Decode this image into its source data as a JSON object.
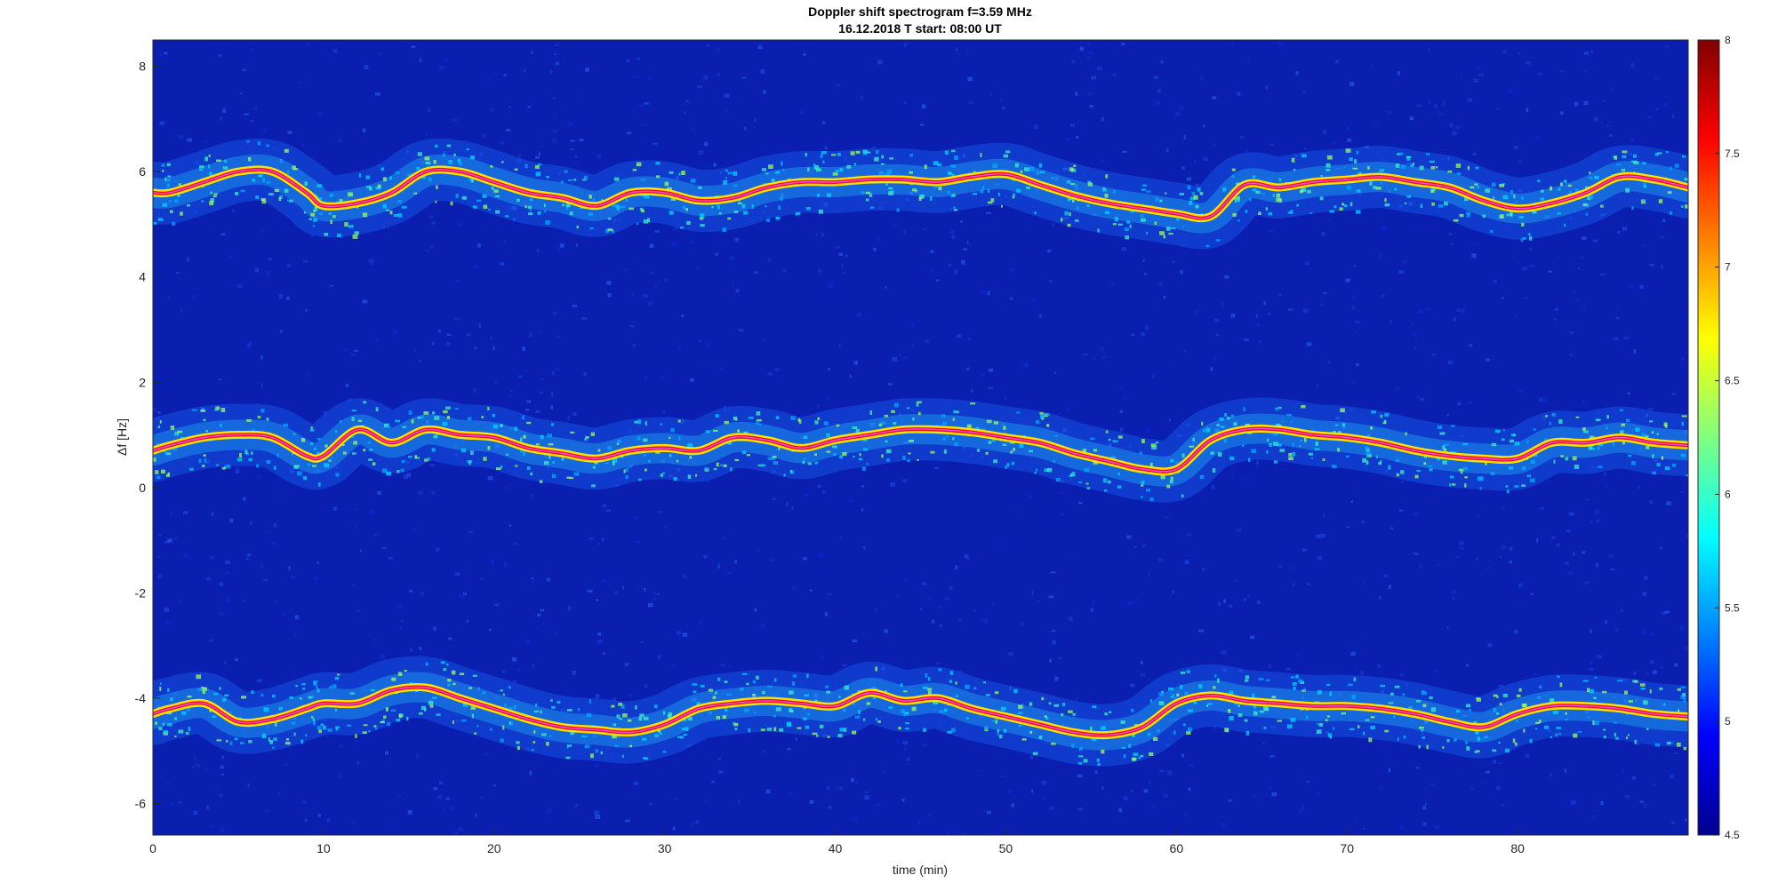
{
  "chart_data": {
    "type": "heatmap",
    "title": "Doppler shift spectrogram f=3.59 MHz",
    "subtitle": "16.12.2018   T start: 08:00 UT",
    "xlabel": "time (min)",
    "ylabel": "Δf [Hz]",
    "xlim": [
      0,
      90
    ],
    "ylim": [
      -6.6,
      8.5
    ],
    "x_ticks": [
      0,
      10,
      20,
      30,
      40,
      50,
      60,
      70,
      80
    ],
    "y_ticks": [
      -6,
      -4,
      -2,
      0,
      2,
      4,
      6,
      8
    ],
    "colormap": "jet",
    "colorbar": {
      "range": [
        4.5,
        8
      ],
      "ticks": [
        4.5,
        5,
        5.5,
        6,
        6.5,
        7,
        7.5,
        8
      ]
    },
    "background_color": "#0a1fb0",
    "traces": [
      {
        "t": [
          0,
          1,
          3,
          5,
          7,
          9,
          10,
          12,
          14,
          16,
          18,
          20,
          22,
          24,
          26,
          28,
          30,
          32,
          34,
          36,
          38,
          40,
          42,
          44,
          46,
          48,
          50,
          52,
          54,
          56,
          58,
          60,
          62,
          64,
          66,
          68,
          70,
          72,
          74,
          76,
          78,
          80,
          82,
          84,
          86,
          88,
          90
        ],
        "df": [
          5.6,
          5.6,
          5.8,
          6.0,
          6.0,
          5.6,
          5.35,
          5.4,
          5.6,
          6.0,
          6.0,
          5.8,
          5.6,
          5.5,
          5.35,
          5.6,
          5.6,
          5.45,
          5.5,
          5.7,
          5.8,
          5.8,
          5.85,
          5.85,
          5.8,
          5.9,
          5.95,
          5.75,
          5.55,
          5.4,
          5.3,
          5.2,
          5.15,
          5.75,
          5.7,
          5.8,
          5.85,
          5.9,
          5.8,
          5.7,
          5.45,
          5.3,
          5.4,
          5.6,
          5.9,
          5.85,
          5.7
        ]
      },
      {
        "t": [
          0,
          1,
          3,
          5,
          7,
          9,
          10,
          12,
          14,
          16,
          18,
          20,
          22,
          24,
          26,
          28,
          30,
          32,
          34,
          36,
          38,
          40,
          42,
          44,
          46,
          48,
          50,
          52,
          54,
          56,
          58,
          60,
          62,
          64,
          66,
          68,
          70,
          72,
          74,
          76,
          78,
          80,
          82,
          84,
          86,
          88,
          90
        ],
        "df": [
          0.7,
          0.8,
          0.95,
          1.0,
          0.95,
          0.6,
          0.6,
          1.1,
          0.85,
          1.1,
          1.0,
          0.95,
          0.75,
          0.65,
          0.55,
          0.7,
          0.75,
          0.7,
          0.95,
          0.9,
          0.75,
          0.9,
          1.0,
          1.1,
          1.1,
          1.05,
          0.95,
          0.85,
          0.65,
          0.5,
          0.35,
          0.35,
          0.9,
          1.1,
          1.1,
          1.0,
          0.95,
          0.85,
          0.7,
          0.6,
          0.55,
          0.55,
          0.85,
          0.85,
          0.95,
          0.85,
          0.8
        ]
      },
      {
        "t": [
          0,
          1,
          3,
          5,
          7,
          9,
          10,
          12,
          14,
          16,
          18,
          20,
          22,
          24,
          26,
          28,
          30,
          32,
          34,
          36,
          38,
          40,
          42,
          44,
          46,
          48,
          50,
          52,
          54,
          56,
          58,
          60,
          62,
          64,
          66,
          68,
          70,
          72,
          74,
          76,
          78,
          80,
          82,
          84,
          86,
          88,
          90
        ],
        "df": [
          -4.3,
          -4.2,
          -4.1,
          -4.45,
          -4.4,
          -4.2,
          -4.1,
          -4.1,
          -3.85,
          -3.8,
          -4.0,
          -4.2,
          -4.4,
          -4.55,
          -4.6,
          -4.65,
          -4.5,
          -4.2,
          -4.1,
          -4.05,
          -4.1,
          -4.15,
          -3.9,
          -4.05,
          -4.0,
          -4.2,
          -4.35,
          -4.5,
          -4.65,
          -4.7,
          -4.55,
          -4.1,
          -3.95,
          -4.05,
          -4.1,
          -4.15,
          -4.15,
          -4.2,
          -4.3,
          -4.45,
          -4.55,
          -4.3,
          -4.15,
          -4.15,
          -4.2,
          -4.3,
          -4.35
        ]
      }
    ]
  }
}
